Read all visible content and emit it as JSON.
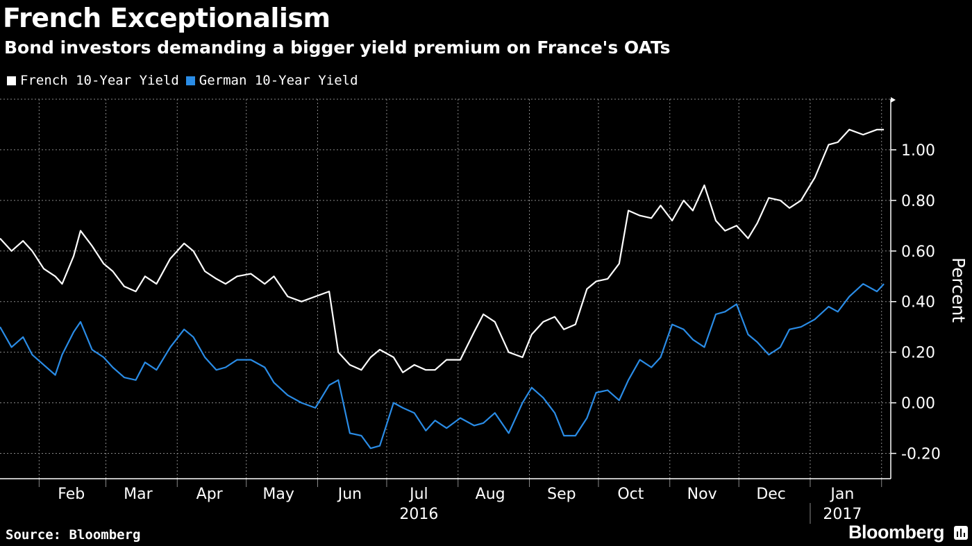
{
  "header": {
    "title": "French Exceptionalism",
    "subtitle": "Bond investors demanding a bigger yield premium on France's OATs"
  },
  "footer": {
    "source": "Source: Bloomberg",
    "brand": "Bloomberg"
  },
  "colors": {
    "background": "#000000",
    "french": "#ffffff",
    "german": "#2a8ce6",
    "grid": "#8a8a8a"
  },
  "chart_data": {
    "type": "line",
    "title": "French Exceptionalism",
    "subtitle": "Bond investors demanding a bigger yield premium on France's OATs",
    "xlabel": "",
    "ylabel": "Percent",
    "ylim": [
      -0.3,
      1.2
    ],
    "yticks": [
      -0.2,
      0.0,
      0.2,
      0.4,
      0.6,
      0.8,
      1.0
    ],
    "ytick_labels": [
      "-0.20",
      "0.00",
      "0.20",
      "0.40",
      "0.60",
      "0.80",
      "1.00"
    ],
    "xlim": [
      "2016-01-15",
      "2017-02-05"
    ],
    "xtick_labels": [
      {
        "label": "Feb",
        "date": "2016-02-15"
      },
      {
        "label": "Mar",
        "date": "2016-03-15"
      },
      {
        "label": "Apr",
        "date": "2016-04-15"
      },
      {
        "label": "May",
        "date": "2016-05-15"
      },
      {
        "label": "Jun",
        "date": "2016-06-15"
      },
      {
        "label": "Jul",
        "date": "2016-07-15"
      },
      {
        "label": "Aug",
        "date": "2016-08-15"
      },
      {
        "label": "Sep",
        "date": "2016-09-15"
      },
      {
        "label": "Oct",
        "date": "2016-10-15"
      },
      {
        "label": "Nov",
        "date": "2016-11-15"
      },
      {
        "label": "Dec",
        "date": "2016-12-15"
      },
      {
        "label": "Jan",
        "date": "2017-01-15"
      }
    ],
    "year_labels": [
      {
        "label": "2016",
        "date": "2016-07-15"
      },
      {
        "label": "2017",
        "date": "2017-01-15"
      }
    ],
    "year_divider": "2017-01-01",
    "gridlines": [
      "2016-02-01",
      "2016-03-01",
      "2016-04-01",
      "2016-05-01",
      "2016-06-01",
      "2016-07-01",
      "2016-08-01",
      "2016-09-01",
      "2016-10-01",
      "2016-11-01",
      "2016-12-01",
      "2017-01-01",
      "2017-02-01"
    ],
    "grid": true,
    "legend_position": "top-left",
    "series": [
      {
        "name": "French 10-Year Yield",
        "color": "#ffffff",
        "x": [
          "2016-01-15",
          "2016-01-20",
          "2016-01-25",
          "2016-01-29",
          "2016-02-03",
          "2016-02-08",
          "2016-02-11",
          "2016-02-16",
          "2016-02-19",
          "2016-02-24",
          "2016-02-29",
          "2016-03-04",
          "2016-03-09",
          "2016-03-14",
          "2016-03-18",
          "2016-03-23",
          "2016-03-29",
          "2016-04-04",
          "2016-04-08",
          "2016-04-13",
          "2016-04-18",
          "2016-04-22",
          "2016-04-27",
          "2016-05-03",
          "2016-05-09",
          "2016-05-13",
          "2016-05-19",
          "2016-05-25",
          "2016-05-31",
          "2016-06-06",
          "2016-06-10",
          "2016-06-15",
          "2016-06-20",
          "2016-06-24",
          "2016-06-28",
          "2016-07-04",
          "2016-07-08",
          "2016-07-13",
          "2016-07-18",
          "2016-07-22",
          "2016-07-27",
          "2016-08-02",
          "2016-08-08",
          "2016-08-12",
          "2016-08-17",
          "2016-08-23",
          "2016-08-29",
          "2016-09-02",
          "2016-09-07",
          "2016-09-12",
          "2016-09-16",
          "2016-09-21",
          "2016-09-26",
          "2016-09-30",
          "2016-10-05",
          "2016-10-10",
          "2016-10-14",
          "2016-10-19",
          "2016-10-24",
          "2016-10-28",
          "2016-11-02",
          "2016-11-07",
          "2016-11-11",
          "2016-11-16",
          "2016-11-21",
          "2016-11-25",
          "2016-11-30",
          "2016-12-05",
          "2016-12-09",
          "2016-12-14",
          "2016-12-19",
          "2016-12-23",
          "2016-12-28",
          "2017-01-03",
          "2017-01-09",
          "2017-01-13",
          "2017-01-18",
          "2017-01-24",
          "2017-01-30",
          "2017-02-02"
        ],
        "y": [
          0.65,
          0.6,
          0.64,
          0.6,
          0.53,
          0.5,
          0.47,
          0.58,
          0.68,
          0.62,
          0.55,
          0.52,
          0.46,
          0.44,
          0.5,
          0.47,
          0.57,
          0.63,
          0.6,
          0.52,
          0.49,
          0.47,
          0.5,
          0.51,
          0.47,
          0.5,
          0.42,
          0.4,
          0.42,
          0.44,
          0.2,
          0.15,
          0.13,
          0.18,
          0.21,
          0.18,
          0.12,
          0.15,
          0.13,
          0.13,
          0.17,
          0.17,
          0.28,
          0.35,
          0.32,
          0.2,
          0.18,
          0.27,
          0.32,
          0.34,
          0.29,
          0.31,
          0.45,
          0.48,
          0.49,
          0.55,
          0.76,
          0.74,
          0.73,
          0.78,
          0.72,
          0.8,
          0.76,
          0.86,
          0.72,
          0.68,
          0.7,
          0.65,
          0.71,
          0.81,
          0.8,
          0.77,
          0.8,
          0.89,
          1.02,
          1.03,
          1.08,
          1.06,
          1.08,
          1.08
        ]
      },
      {
        "name": "German 10-Year Yield",
        "color": "#2a8ce6",
        "x": [
          "2016-01-15",
          "2016-01-20",
          "2016-01-25",
          "2016-01-29",
          "2016-02-03",
          "2016-02-08",
          "2016-02-11",
          "2016-02-16",
          "2016-02-19",
          "2016-02-24",
          "2016-02-29",
          "2016-03-04",
          "2016-03-09",
          "2016-03-14",
          "2016-03-18",
          "2016-03-23",
          "2016-03-29",
          "2016-04-04",
          "2016-04-08",
          "2016-04-13",
          "2016-04-18",
          "2016-04-22",
          "2016-04-27",
          "2016-05-03",
          "2016-05-09",
          "2016-05-13",
          "2016-05-19",
          "2016-05-25",
          "2016-05-31",
          "2016-06-06",
          "2016-06-10",
          "2016-06-15",
          "2016-06-20",
          "2016-06-24",
          "2016-06-28",
          "2016-07-04",
          "2016-07-08",
          "2016-07-13",
          "2016-07-18",
          "2016-07-22",
          "2016-07-27",
          "2016-08-02",
          "2016-08-08",
          "2016-08-12",
          "2016-08-17",
          "2016-08-23",
          "2016-08-29",
          "2016-09-02",
          "2016-09-07",
          "2016-09-12",
          "2016-09-16",
          "2016-09-21",
          "2016-09-26",
          "2016-09-30",
          "2016-10-05",
          "2016-10-10",
          "2016-10-14",
          "2016-10-19",
          "2016-10-24",
          "2016-10-28",
          "2016-11-02",
          "2016-11-07",
          "2016-11-11",
          "2016-11-16",
          "2016-11-21",
          "2016-11-25",
          "2016-11-30",
          "2016-12-05",
          "2016-12-09",
          "2016-12-14",
          "2016-12-19",
          "2016-12-23",
          "2016-12-28",
          "2017-01-03",
          "2017-01-09",
          "2017-01-13",
          "2017-01-18",
          "2017-01-24",
          "2017-01-30",
          "2017-02-02"
        ],
        "y": [
          0.3,
          0.22,
          0.26,
          0.19,
          0.15,
          0.11,
          0.19,
          0.28,
          0.32,
          0.21,
          0.18,
          0.14,
          0.1,
          0.09,
          0.16,
          0.13,
          0.22,
          0.29,
          0.26,
          0.18,
          0.13,
          0.14,
          0.17,
          0.17,
          0.14,
          0.08,
          0.03,
          0.0,
          -0.02,
          0.07,
          0.09,
          -0.12,
          -0.13,
          -0.18,
          -0.17,
          0.0,
          -0.02,
          -0.04,
          -0.11,
          -0.07,
          -0.1,
          -0.06,
          -0.09,
          -0.08,
          -0.04,
          -0.12,
          0.0,
          0.06,
          0.02,
          -0.04,
          -0.13,
          -0.13,
          -0.06,
          0.04,
          0.05,
          0.01,
          0.09,
          0.17,
          0.14,
          0.18,
          0.31,
          0.29,
          0.25,
          0.22,
          0.35,
          0.36,
          0.39,
          0.27,
          0.24,
          0.19,
          0.22,
          0.29,
          0.3,
          0.33,
          0.38,
          0.36,
          0.42,
          0.47,
          0.44,
          0.47
        ]
      }
    ]
  }
}
